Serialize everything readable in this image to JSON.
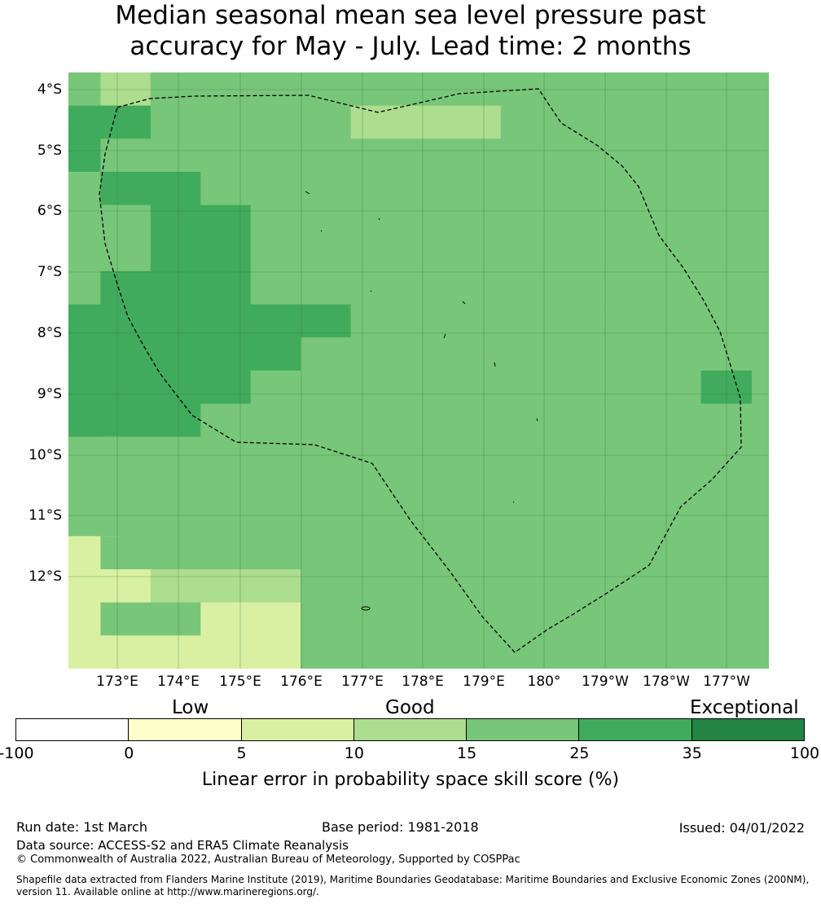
{
  "title_line1": "Median seasonal mean sea level pressure past",
  "title_line2": "accuracy for May - July. Lead time: 2 months",
  "map": {
    "lat_labels": [
      "4°S",
      "5°S",
      "6°S",
      "7°S",
      "8°S",
      "9°S",
      "10°S",
      "11°S",
      "12°S"
    ],
    "lon_labels": [
      "173°E",
      "174°E",
      "175°E",
      "176°E",
      "177°E",
      "178°E",
      "179°E",
      "180°",
      "179°W",
      "178°W",
      "177°W"
    ],
    "grid_cols": 14,
    "grid_rows": 18,
    "grid_values": [
      "43444444444444",
      "55444433344444",
      "54444444444444",
      "45544444444444",
      "44554444444444",
      "44554444444444",
      "45554444444444",
      "55555544444444",
      "55555444444444",
      "55554444444445",
      "55544444444444",
      "44444444444444",
      "44444444444444",
      "44444444444444",
      "24444444444444",
      "22333444444444",
      "24422444444444",
      "22222444444444"
    ],
    "colors": {
      "1": "#ffffcc",
      "2": "#d9f0a3",
      "3": "#addd8e",
      "4": "#78c679",
      "5": "#41ab5d",
      "6": "#238443"
    }
  },
  "colorbar": {
    "categories": [
      "Low",
      "Good",
      "Exceptional"
    ],
    "ticks": [
      "-100",
      "0",
      "5",
      "10",
      "15",
      "25",
      "35",
      "100"
    ],
    "segment_colors": [
      "#ffffff",
      "#ffffcc",
      "#d9f0a3",
      "#addd8e",
      "#78c679",
      "#41ab5d",
      "#238443"
    ],
    "label": "Linear error in probability space skill score (%)"
  },
  "footer": {
    "run_date": "Run date: 1st March",
    "base_period": "Base period: 1981-2018",
    "issued": "Issued: 04/01/2022",
    "data_source": "Data source: ACCESS-S2 and ERA5 Climate Reanalysis",
    "copyright": "© Commonwealth of Australia 2022, Australian Bureau of Meteorology, Supported by COSPPac",
    "shapefile_line1": "Shapefile data extracted from Flanders Marine Institute (2019), Maritime Boundaries Geodatabase: Maritime Boundaries and Exclusive Economic Zones (200NM),",
    "shapefile_line2": "version 11. Available online at http://www.marineregions.org/."
  }
}
